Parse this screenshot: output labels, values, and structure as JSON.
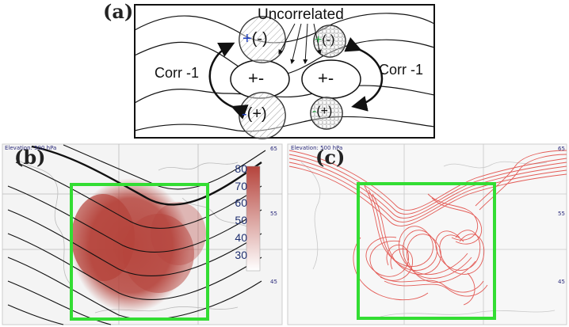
{
  "panel_a": {
    "label": "(a)",
    "uncorrelated": "Uncorrelated",
    "corr_left": "Corr -1",
    "corr_right": "Corr -1",
    "plus_minus": "+-",
    "top_left_circle": {
      "sign": "+",
      "paren": "(-)"
    },
    "top_right_circle": {
      "sign": "+",
      "paren": "(-)"
    },
    "bottom_left_circle": {
      "sign": "-",
      "paren": "(+)"
    },
    "bottom_right_circle": {
      "sign": "-",
      "paren": "(+)"
    }
  },
  "panel_b": {
    "label": "(b)",
    "elevation": "Elevation: 500 hPa",
    "colorbar_ticks": [
      "80",
      "70",
      "60",
      "50",
      "40",
      "30"
    ],
    "lat_labels": [
      "65",
      "55",
      "45"
    ]
  },
  "panel_c": {
    "label": "(c)",
    "elevation": "Elevation: 500 hPa",
    "lat_labels": [
      "65",
      "55",
      "45"
    ]
  },
  "colors": {
    "box": "#33dd33",
    "shade": "#b5433b",
    "trajectory": "#e0403a",
    "blue_sign": "#1f3fbf",
    "green_sign": "#1f9f3f"
  }
}
